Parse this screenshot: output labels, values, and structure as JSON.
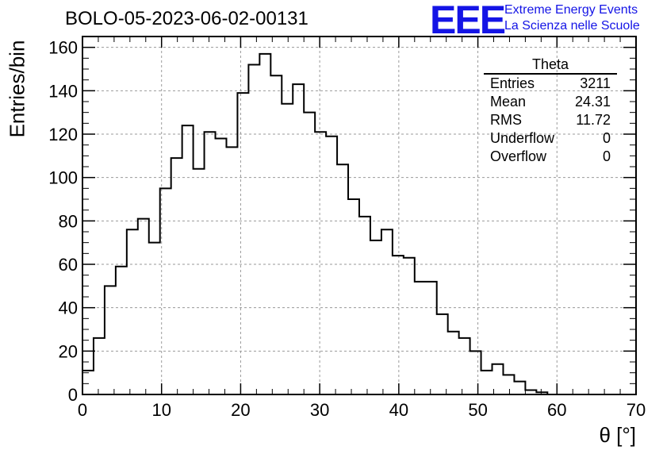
{
  "chart_data": {
    "type": "histogram",
    "title": "BOLO-05-2023-06-02-00131",
    "xlabel": "θ [°]",
    "ylabel": "Entries/bin",
    "xlim": [
      0,
      70
    ],
    "ylim": [
      0,
      165
    ],
    "grid": true,
    "x_ticks": [
      "0",
      "10",
      "20",
      "30",
      "40",
      "50",
      "60",
      "70"
    ],
    "y_ticks": [
      "0",
      "20",
      "40",
      "60",
      "80",
      "100",
      "120",
      "140",
      "160"
    ],
    "bin_width": 1.4,
    "bin_edges_start": 0,
    "values": [
      11,
      26,
      50,
      59,
      76,
      81,
      70,
      95,
      109,
      124,
      104,
      121,
      118,
      114,
      139,
      152,
      157,
      147,
      134,
      143,
      130,
      121,
      119,
      106,
      90,
      82,
      71,
      76,
      64,
      63,
      52,
      52,
      37,
      29,
      26,
      20,
      11,
      14,
      9,
      6,
      2,
      1,
      0,
      0,
      0,
      0,
      0,
      0,
      0,
      0
    ],
    "stats": {
      "name": "Theta",
      "rows": [
        {
          "label": "Entries",
          "value": "3211"
        },
        {
          "label": "Mean",
          "value": "24.31"
        },
        {
          "label": "RMS",
          "value": "11.72"
        },
        {
          "label": "Underflow",
          "value": "0"
        },
        {
          "label": "Overflow",
          "value": "0"
        }
      ]
    },
    "logo": {
      "mark": "EEE",
      "line1": "Extreme Energy Events",
      "line2": "La Scienza nelle Scuole"
    }
  }
}
